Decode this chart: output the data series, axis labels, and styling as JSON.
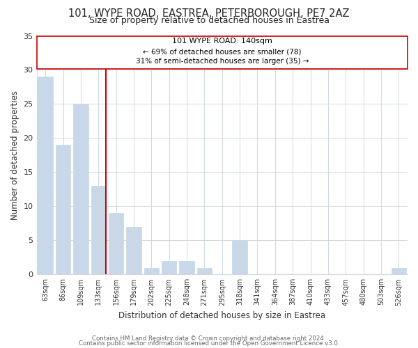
{
  "title": "101, WYPE ROAD, EASTREA, PETERBOROUGH, PE7 2AZ",
  "subtitle": "Size of property relative to detached houses in Eastrea",
  "xlabel": "Distribution of detached houses by size in Eastrea",
  "ylabel": "Number of detached properties",
  "bar_labels": [
    "63sqm",
    "86sqm",
    "109sqm",
    "133sqm",
    "156sqm",
    "179sqm",
    "202sqm",
    "225sqm",
    "248sqm",
    "271sqm",
    "295sqm",
    "318sqm",
    "341sqm",
    "364sqm",
    "387sqm",
    "410sqm",
    "433sqm",
    "457sqm",
    "480sqm",
    "503sqm",
    "526sqm"
  ],
  "bar_values": [
    29,
    19,
    25,
    13,
    9,
    7,
    1,
    2,
    2,
    1,
    0,
    5,
    0,
    0,
    0,
    0,
    0,
    0,
    0,
    0,
    1
  ],
  "bar_color": "#c8d8e8",
  "property_line_x": 3,
  "property_label": "101 WYPE ROAD: 140sqm",
  "annotation_line1": "← 69% of detached houses are smaller (78)",
  "annotation_line2": "31% of semi-detached houses are larger (35) →",
  "vline_color": "#cc0000",
  "ylim": [
    0,
    35
  ],
  "yticks": [
    0,
    5,
    10,
    15,
    20,
    25,
    30,
    35
  ],
  "footer1": "Contains HM Land Registry data © Crown copyright and database right 2024.",
  "footer2": "Contains public sector information licensed under the Open Government Licence v3.0.",
  "background_color": "#ffffff",
  "grid_color": "#d0d8e0"
}
